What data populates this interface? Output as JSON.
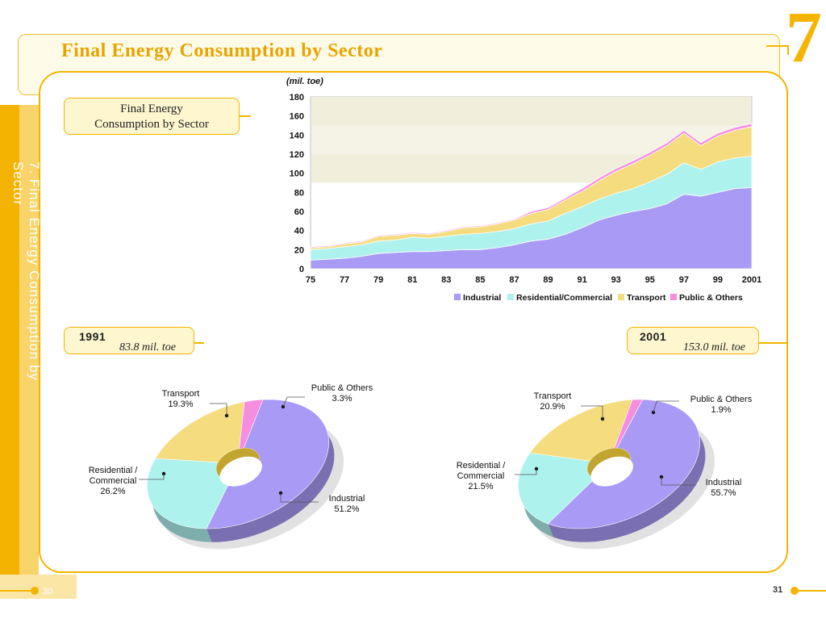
{
  "header": {
    "title": "Final Energy Consumption by Sector",
    "chapter_number": "7"
  },
  "sidebar": {
    "vertical_title": "7. Final Energy Consumption by Sector"
  },
  "footer": {
    "page_left": "30",
    "page_right": "31"
  },
  "section_label": "Final Energy Consumption by Sector",
  "pie_1991": {
    "year": "1991",
    "total": "83.8 mil. toe"
  },
  "pie_2001": {
    "year": "2001",
    "total": "153.0 mil. toe"
  },
  "colors": {
    "industrial": "#a99af5",
    "residential": "#aef2ee",
    "transport": "#f5dc7e",
    "public": "#f58ee0",
    "accent": "#f2b600"
  },
  "chart_data": [
    {
      "type": "area",
      "stacked": true,
      "ylabel": "(mil. toe)",
      "ylim": [
        0,
        180
      ],
      "yticks": [
        "0",
        "20",
        "40",
        "60",
        "80",
        "100",
        "120",
        "140",
        "160",
        "180"
      ],
      "xtick_labels": [
        "75",
        "77",
        "79",
        "81",
        "83",
        "85",
        "87",
        "89",
        "91",
        "93",
        "95",
        "97",
        "99",
        "2001"
      ],
      "x": [
        1975,
        1976,
        1977,
        1978,
        1979,
        1980,
        1981,
        1982,
        1983,
        1984,
        1985,
        1986,
        1987,
        1988,
        1989,
        1990,
        1991,
        1992,
        1993,
        1994,
        1995,
        1996,
        1997,
        1998,
        1999,
        2000,
        2001
      ],
      "legend_position": "bottom",
      "series": [
        {
          "name": "Industrial",
          "values": [
            9,
            10,
            11,
            13,
            16,
            17,
            18,
            18,
            19,
            20,
            20,
            22,
            25,
            29,
            31,
            36,
            43,
            51,
            56,
            60,
            63,
            68,
            78,
            76,
            80,
            84,
            85
          ]
        },
        {
          "name": "Residential/Commercial",
          "values": [
            11,
            11,
            12,
            12,
            13,
            13,
            15,
            14,
            15,
            16,
            17,
            17,
            17,
            18,
            19,
            22,
            22,
            22,
            23,
            24,
            28,
            31,
            33,
            28,
            32,
            32,
            33
          ]
        },
        {
          "name": "Transport",
          "values": [
            2,
            2,
            3,
            3,
            5,
            5,
            4,
            4,
            5,
            7,
            7,
            8,
            9,
            11,
            12,
            14,
            16,
            19,
            23,
            26,
            28,
            30,
            31,
            25,
            27,
            29,
            31
          ]
        },
        {
          "name": "Public & Others",
          "values": [
            1,
            1,
            1,
            1,
            1,
            1,
            1,
            1,
            1,
            1,
            1,
            1,
            1,
            2,
            2,
            2,
            3,
            3,
            3,
            3,
            3,
            3,
            3,
            3,
            3,
            3,
            3
          ]
        }
      ]
    },
    {
      "type": "pie",
      "style": "donut",
      "categories": [
        "Industrial",
        "Residential / Commercial",
        "Transport",
        "Public & Others"
      ],
      "values": [
        51.2,
        26.2,
        19.3,
        3.3
      ],
      "labels": [
        "51.2%",
        "26.2%",
        "19.3%",
        "3.3%"
      ]
    },
    {
      "type": "pie",
      "style": "donut",
      "categories": [
        "Industrial",
        "Residential / Commercial",
        "Transport",
        "Public & Others"
      ],
      "values": [
        55.7,
        21.5,
        20.9,
        1.9
      ],
      "labels": [
        "55.7%",
        "21.5%",
        "20.9%",
        "1.9%"
      ]
    }
  ]
}
